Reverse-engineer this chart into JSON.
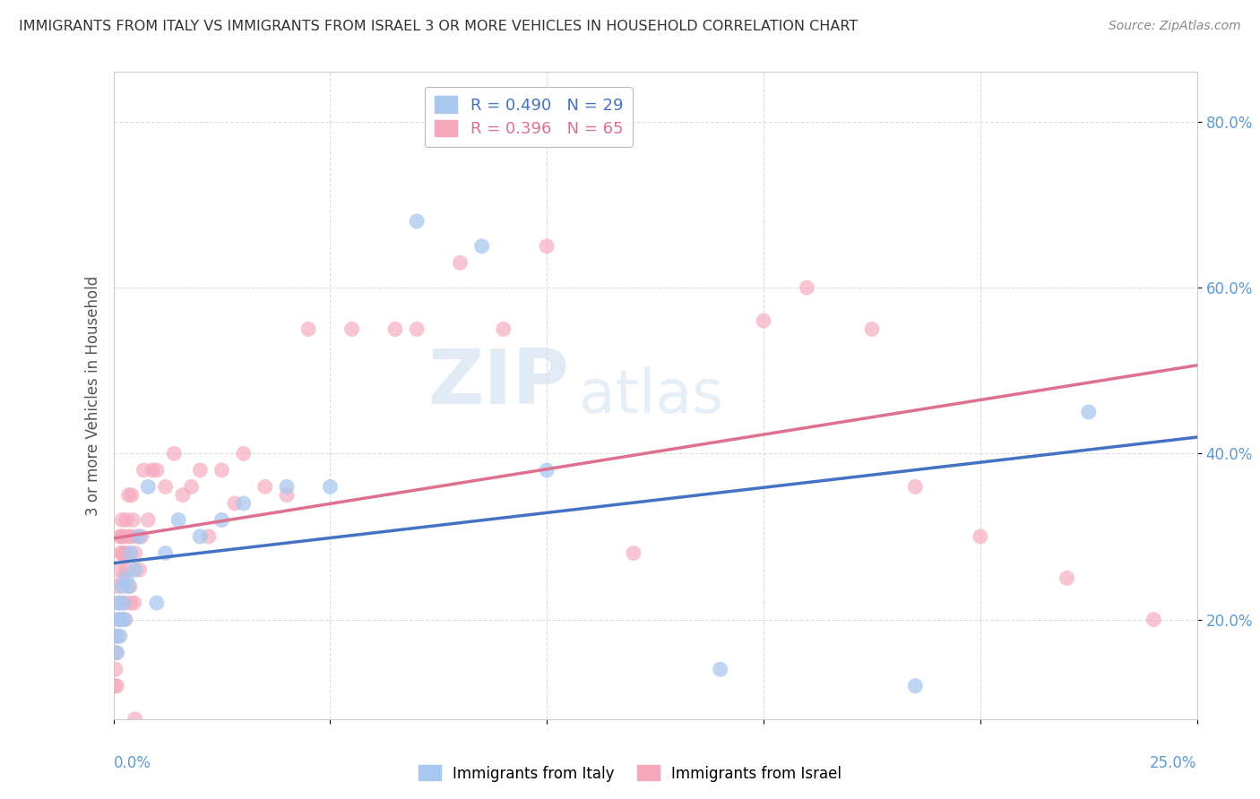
{
  "title": "IMMIGRANTS FROM ITALY VS IMMIGRANTS FROM ISRAEL 3 OR MORE VEHICLES IN HOUSEHOLD CORRELATION CHART",
  "source": "Source: ZipAtlas.com",
  "ylabel": "3 or more Vehicles in Household",
  "xlim": [
    0.0,
    25.0
  ],
  "ylim": [
    8.0,
    86.0
  ],
  "yticks": [
    20.0,
    40.0,
    60.0,
    80.0
  ],
  "color_italy": "#A8C8F0",
  "color_israel": "#F5A8BC",
  "color_italy_line": "#4472C4",
  "color_israel_line": "#E07090",
  "watermark_zip": "ZIP",
  "watermark_atlas": "atlas",
  "italy_x": [
    0.05,
    0.08,
    0.1,
    0.12,
    0.15,
    0.18,
    0.2,
    0.22,
    0.25,
    0.3,
    0.35,
    0.4,
    0.5,
    0.6,
    0.8,
    1.0,
    1.2,
    1.5,
    2.0,
    2.5,
    3.0,
    4.0,
    5.0,
    7.0,
    8.5,
    10.0,
    14.0,
    18.5,
    22.5
  ],
  "italy_y": [
    18,
    16,
    20,
    22,
    18,
    20,
    24,
    22,
    20,
    25,
    24,
    28,
    26,
    30,
    36,
    22,
    28,
    32,
    30,
    32,
    34,
    36,
    36,
    68,
    65,
    38,
    14,
    12,
    45
  ],
  "israel_x": [
    0.03,
    0.05,
    0.07,
    0.08,
    0.1,
    0.1,
    0.12,
    0.13,
    0.15,
    0.15,
    0.17,
    0.18,
    0.2,
    0.2,
    0.22,
    0.23,
    0.25,
    0.25,
    0.28,
    0.3,
    0.3,
    0.32,
    0.35,
    0.35,
    0.38,
    0.4,
    0.4,
    0.42,
    0.45,
    0.48,
    0.5,
    0.55,
    0.6,
    0.65,
    0.7,
    0.8,
    0.9,
    1.0,
    1.2,
    1.4,
    1.6,
    1.8,
    2.0,
    2.2,
    2.5,
    2.8,
    3.0,
    3.5,
    4.0,
    4.5,
    5.5,
    6.5,
    7.0,
    8.0,
    9.0,
    10.0,
    12.0,
    15.0,
    16.0,
    17.5,
    18.5,
    20.0,
    22.0,
    24.0,
    0.5
  ],
  "israel_y": [
    12,
    14,
    16,
    12,
    18,
    24,
    20,
    22,
    26,
    30,
    28,
    30,
    28,
    32,
    25,
    30,
    22,
    28,
    20,
    26,
    32,
    28,
    30,
    35,
    24,
    30,
    22,
    35,
    32,
    22,
    28,
    30,
    26,
    30,
    38,
    32,
    38,
    38,
    36,
    40,
    35,
    36,
    38,
    30,
    38,
    34,
    40,
    36,
    35,
    55,
    55,
    55,
    55,
    63,
    55,
    65,
    28,
    56,
    60,
    55,
    36,
    30,
    25,
    20,
    8
  ]
}
